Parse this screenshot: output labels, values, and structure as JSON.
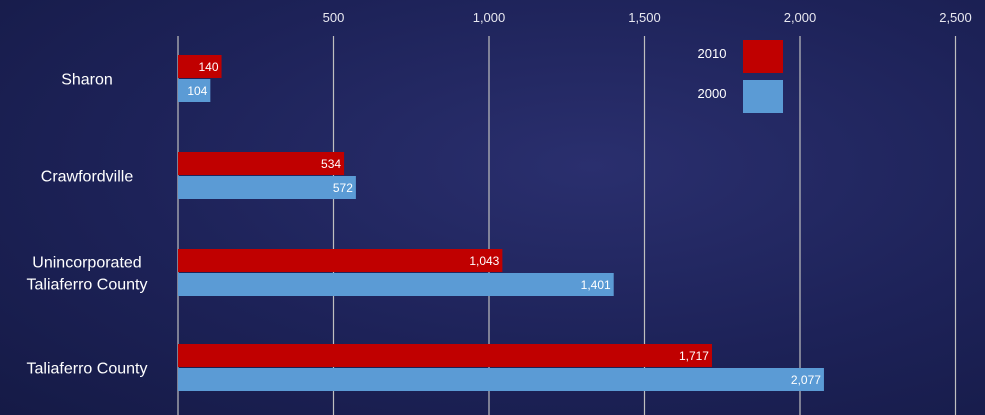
{
  "chart_data": {
    "type": "bar",
    "orientation": "horizontal",
    "categories": [
      "Sharon",
      "Crawfordville",
      "Unincorporated\nTaliaferro County",
      "Taliaferro County"
    ],
    "series": [
      {
        "name": "2010",
        "values": [
          140,
          534,
          1043,
          1717
        ],
        "labels": [
          "140",
          "534",
          "1,043",
          "1,717"
        ],
        "color": "#c00000"
      },
      {
        "name": "2000",
        "values": [
          104,
          572,
          1401,
          2077
        ],
        "labels": [
          "104",
          "572",
          "1,401",
          "2,077"
        ],
        "color": "#5b9bd5"
      }
    ],
    "xlim": [
      0,
      2500
    ],
    "x_ticks": [
      500,
      1000,
      1500,
      2000,
      2500
    ],
    "x_tick_labels": [
      "500",
      "1,000",
      "1,500",
      "2,000",
      "2,500"
    ],
    "grid": true,
    "legend_position": "top-right",
    "gridline_color": "#bfbfbf"
  }
}
